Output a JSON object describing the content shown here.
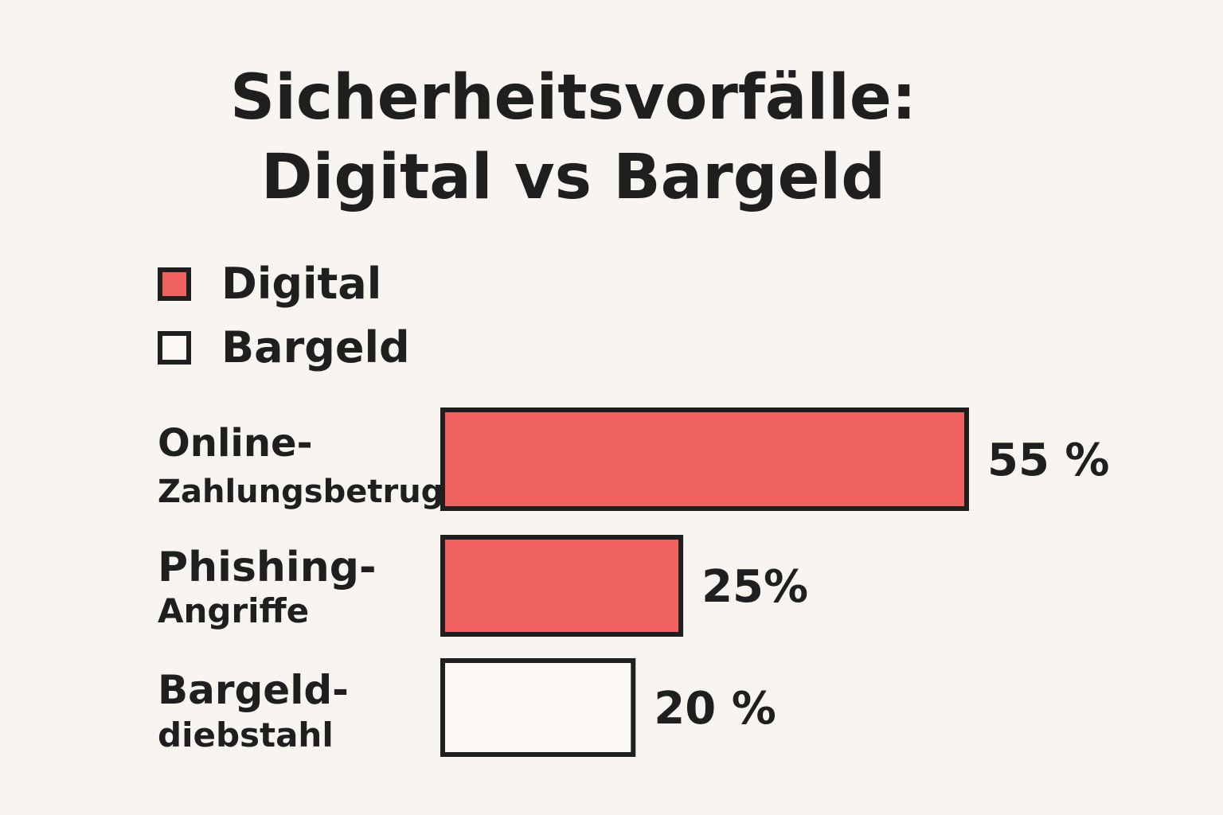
{
  "chart_data": {
    "type": "bar",
    "orientation": "horizontal",
    "title_lines": [
      "Sicherheitsvorfälle:",
      "Digital vs Bargeld"
    ],
    "legend": [
      {
        "name": "Digital",
        "color": "#f0625f"
      },
      {
        "name": "Bargeld",
        "color": "#fbf8f4"
      }
    ],
    "categories": [
      {
        "lines": [
          "Online-",
          "Zahlungsbetrug"
        ],
        "value": 55,
        "label": "55 %",
        "series": "Digital"
      },
      {
        "lines": [
          "Phishing-",
          "Angriffe"
        ],
        "value": 25,
        "label": "25%",
        "series": "Digital"
      },
      {
        "lines": [
          "Bargeld-",
          "diebstahl"
        ],
        "value": 20,
        "label": "20 %",
        "series": "Bargeld"
      }
    ],
    "unit": "%",
    "xlim": [
      0,
      55
    ],
    "grid": false,
    "legend_position": "top-left"
  }
}
